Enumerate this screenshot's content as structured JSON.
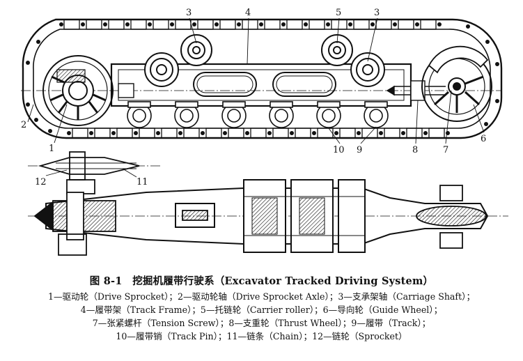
{
  "figure": {
    "callouts": {
      "n1": "1",
      "n2": "2",
      "n3a": "3",
      "n3b": "3",
      "n4": "4",
      "n5": "5",
      "n6": "6",
      "n7": "7",
      "n8": "8",
      "n9": "9",
      "n10": "10",
      "n11": "11",
      "n12": "12"
    }
  },
  "caption": {
    "title": "图 8-1　挖掘机履带行驶系（Excavator Tracked Driving System）",
    "lines": [
      "1—驱动轮（Drive Sprocket）；2—驱动轮轴（Drive Sprocket Axle）；3—支承架轴（Carriage Shaft）；",
      "4—履带架（Track Frame）；5—托链轮（Carrier roller）；6—导向轮（Guide Wheel）；",
      "7—张紧螺杆（Tension Screw）；8—支重轮（Thrust Wheel）；9—履带（Track）；",
      "10—履带销（Track Pin）；11—链条（Chain）；12—链轮（Sprocket）"
    ]
  }
}
